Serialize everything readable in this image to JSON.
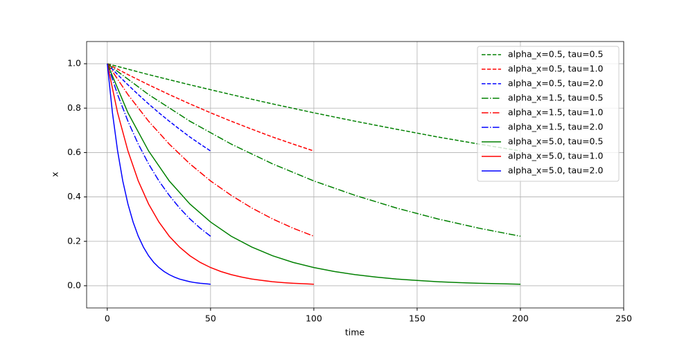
{
  "chart_data": {
    "type": "line",
    "xlabel": "time",
    "ylabel": "x",
    "xlim": [
      -10,
      250
    ],
    "ylim": [
      -0.1,
      1.1
    ],
    "xticks": [
      0,
      50,
      100,
      150,
      200,
      250
    ],
    "yticks": [
      {
        "value": 0,
        "label": "0.0"
      },
      0.2,
      0.4,
      0.6,
      0.8,
      {
        "value": 1,
        "label": "1.0"
      }
    ],
    "grid": true,
    "legend": "upper right",
    "series": [
      {
        "name": "alpha_x=0.5, tau=0.5",
        "color": "#008000",
        "linestyle": "dashed",
        "x": [
          0,
          20,
          40,
          60,
          80,
          100,
          120,
          140,
          160,
          180,
          200
        ],
        "values": [
          1,
          0.951,
          0.905,
          0.861,
          0.819,
          0.779,
          0.741,
          0.705,
          0.67,
          0.638,
          0.607
        ]
      },
      {
        "name": "alpha_x=0.5, tau=1.0",
        "color": "#ff0000",
        "linestyle": "dashed",
        "x": [
          0,
          10,
          20,
          30,
          40,
          50,
          60,
          70,
          80,
          90,
          100
        ],
        "values": [
          1,
          0.951,
          0.905,
          0.861,
          0.819,
          0.779,
          0.741,
          0.705,
          0.67,
          0.638,
          0.607
        ]
      },
      {
        "name": "alpha_x=0.5, tau=2.0",
        "color": "#0000ff",
        "linestyle": "dashed",
        "x": [
          0,
          5,
          10,
          15,
          20,
          25,
          30,
          35,
          40,
          45,
          50
        ],
        "values": [
          1,
          0.951,
          0.905,
          0.861,
          0.819,
          0.779,
          0.741,
          0.705,
          0.67,
          0.638,
          0.607
        ]
      },
      {
        "name": "alpha_x=1.5, tau=0.5",
        "color": "#008000",
        "linestyle": "dashdot",
        "x": [
          0,
          20,
          40,
          60,
          80,
          100,
          120,
          140,
          160,
          180,
          200
        ],
        "values": [
          1,
          0.861,
          0.741,
          0.638,
          0.549,
          0.472,
          0.407,
          0.35,
          0.301,
          0.259,
          0.223
        ]
      },
      {
        "name": "alpha_x=1.5, tau=1.0",
        "color": "#ff0000",
        "linestyle": "dashdot",
        "x": [
          0,
          10,
          20,
          30,
          40,
          50,
          60,
          70,
          80,
          90,
          100
        ],
        "values": [
          1,
          0.861,
          0.741,
          0.638,
          0.549,
          0.472,
          0.407,
          0.35,
          0.301,
          0.259,
          0.223
        ]
      },
      {
        "name": "alpha_x=1.5, tau=2.0",
        "color": "#0000ff",
        "linestyle": "dashdot",
        "x": [
          0,
          5,
          10,
          15,
          20,
          25,
          30,
          35,
          40,
          45,
          50
        ],
        "values": [
          1,
          0.861,
          0.741,
          0.638,
          0.549,
          0.472,
          0.407,
          0.35,
          0.301,
          0.259,
          0.223
        ]
      },
      {
        "name": "alpha_x=5.0, tau=0.5",
        "color": "#008000",
        "linestyle": "solid",
        "x": [
          0,
          10,
          20,
          30,
          40,
          50,
          60,
          70,
          80,
          90,
          100,
          110,
          120,
          130,
          140,
          150,
          160,
          170,
          180,
          190,
          200
        ],
        "values": [
          1,
          0.779,
          0.607,
          0.472,
          0.368,
          0.287,
          0.223,
          0.174,
          0.135,
          0.105,
          0.082,
          0.064,
          0.05,
          0.039,
          0.03,
          0.024,
          0.018,
          0.014,
          0.011,
          0.009,
          0.0067
        ]
      },
      {
        "name": "alpha_x=5.0, tau=1.0",
        "color": "#ff0000",
        "linestyle": "solid",
        "x": [
          0,
          5,
          10,
          15,
          20,
          25,
          30,
          35,
          40,
          45,
          50,
          55,
          60,
          65,
          70,
          75,
          80,
          85,
          90,
          95,
          100
        ],
        "values": [
          1,
          0.779,
          0.607,
          0.472,
          0.368,
          0.287,
          0.223,
          0.174,
          0.135,
          0.105,
          0.082,
          0.064,
          0.05,
          0.039,
          0.03,
          0.024,
          0.018,
          0.014,
          0.011,
          0.009,
          0.0067
        ]
      },
      {
        "name": "alpha_x=5.0, tau=2.0",
        "color": "#0000ff",
        "linestyle": "solid",
        "x": [
          0,
          2.5,
          5,
          7.5,
          10,
          12.5,
          15,
          17.5,
          20,
          22.5,
          25,
          27.5,
          30,
          32.5,
          35,
          37.5,
          40,
          42.5,
          45,
          47.5,
          50
        ],
        "values": [
          1,
          0.779,
          0.607,
          0.472,
          0.368,
          0.287,
          0.223,
          0.174,
          0.135,
          0.105,
          0.082,
          0.064,
          0.05,
          0.039,
          0.03,
          0.024,
          0.018,
          0.014,
          0.011,
          0.009,
          0.0067
        ]
      }
    ]
  }
}
